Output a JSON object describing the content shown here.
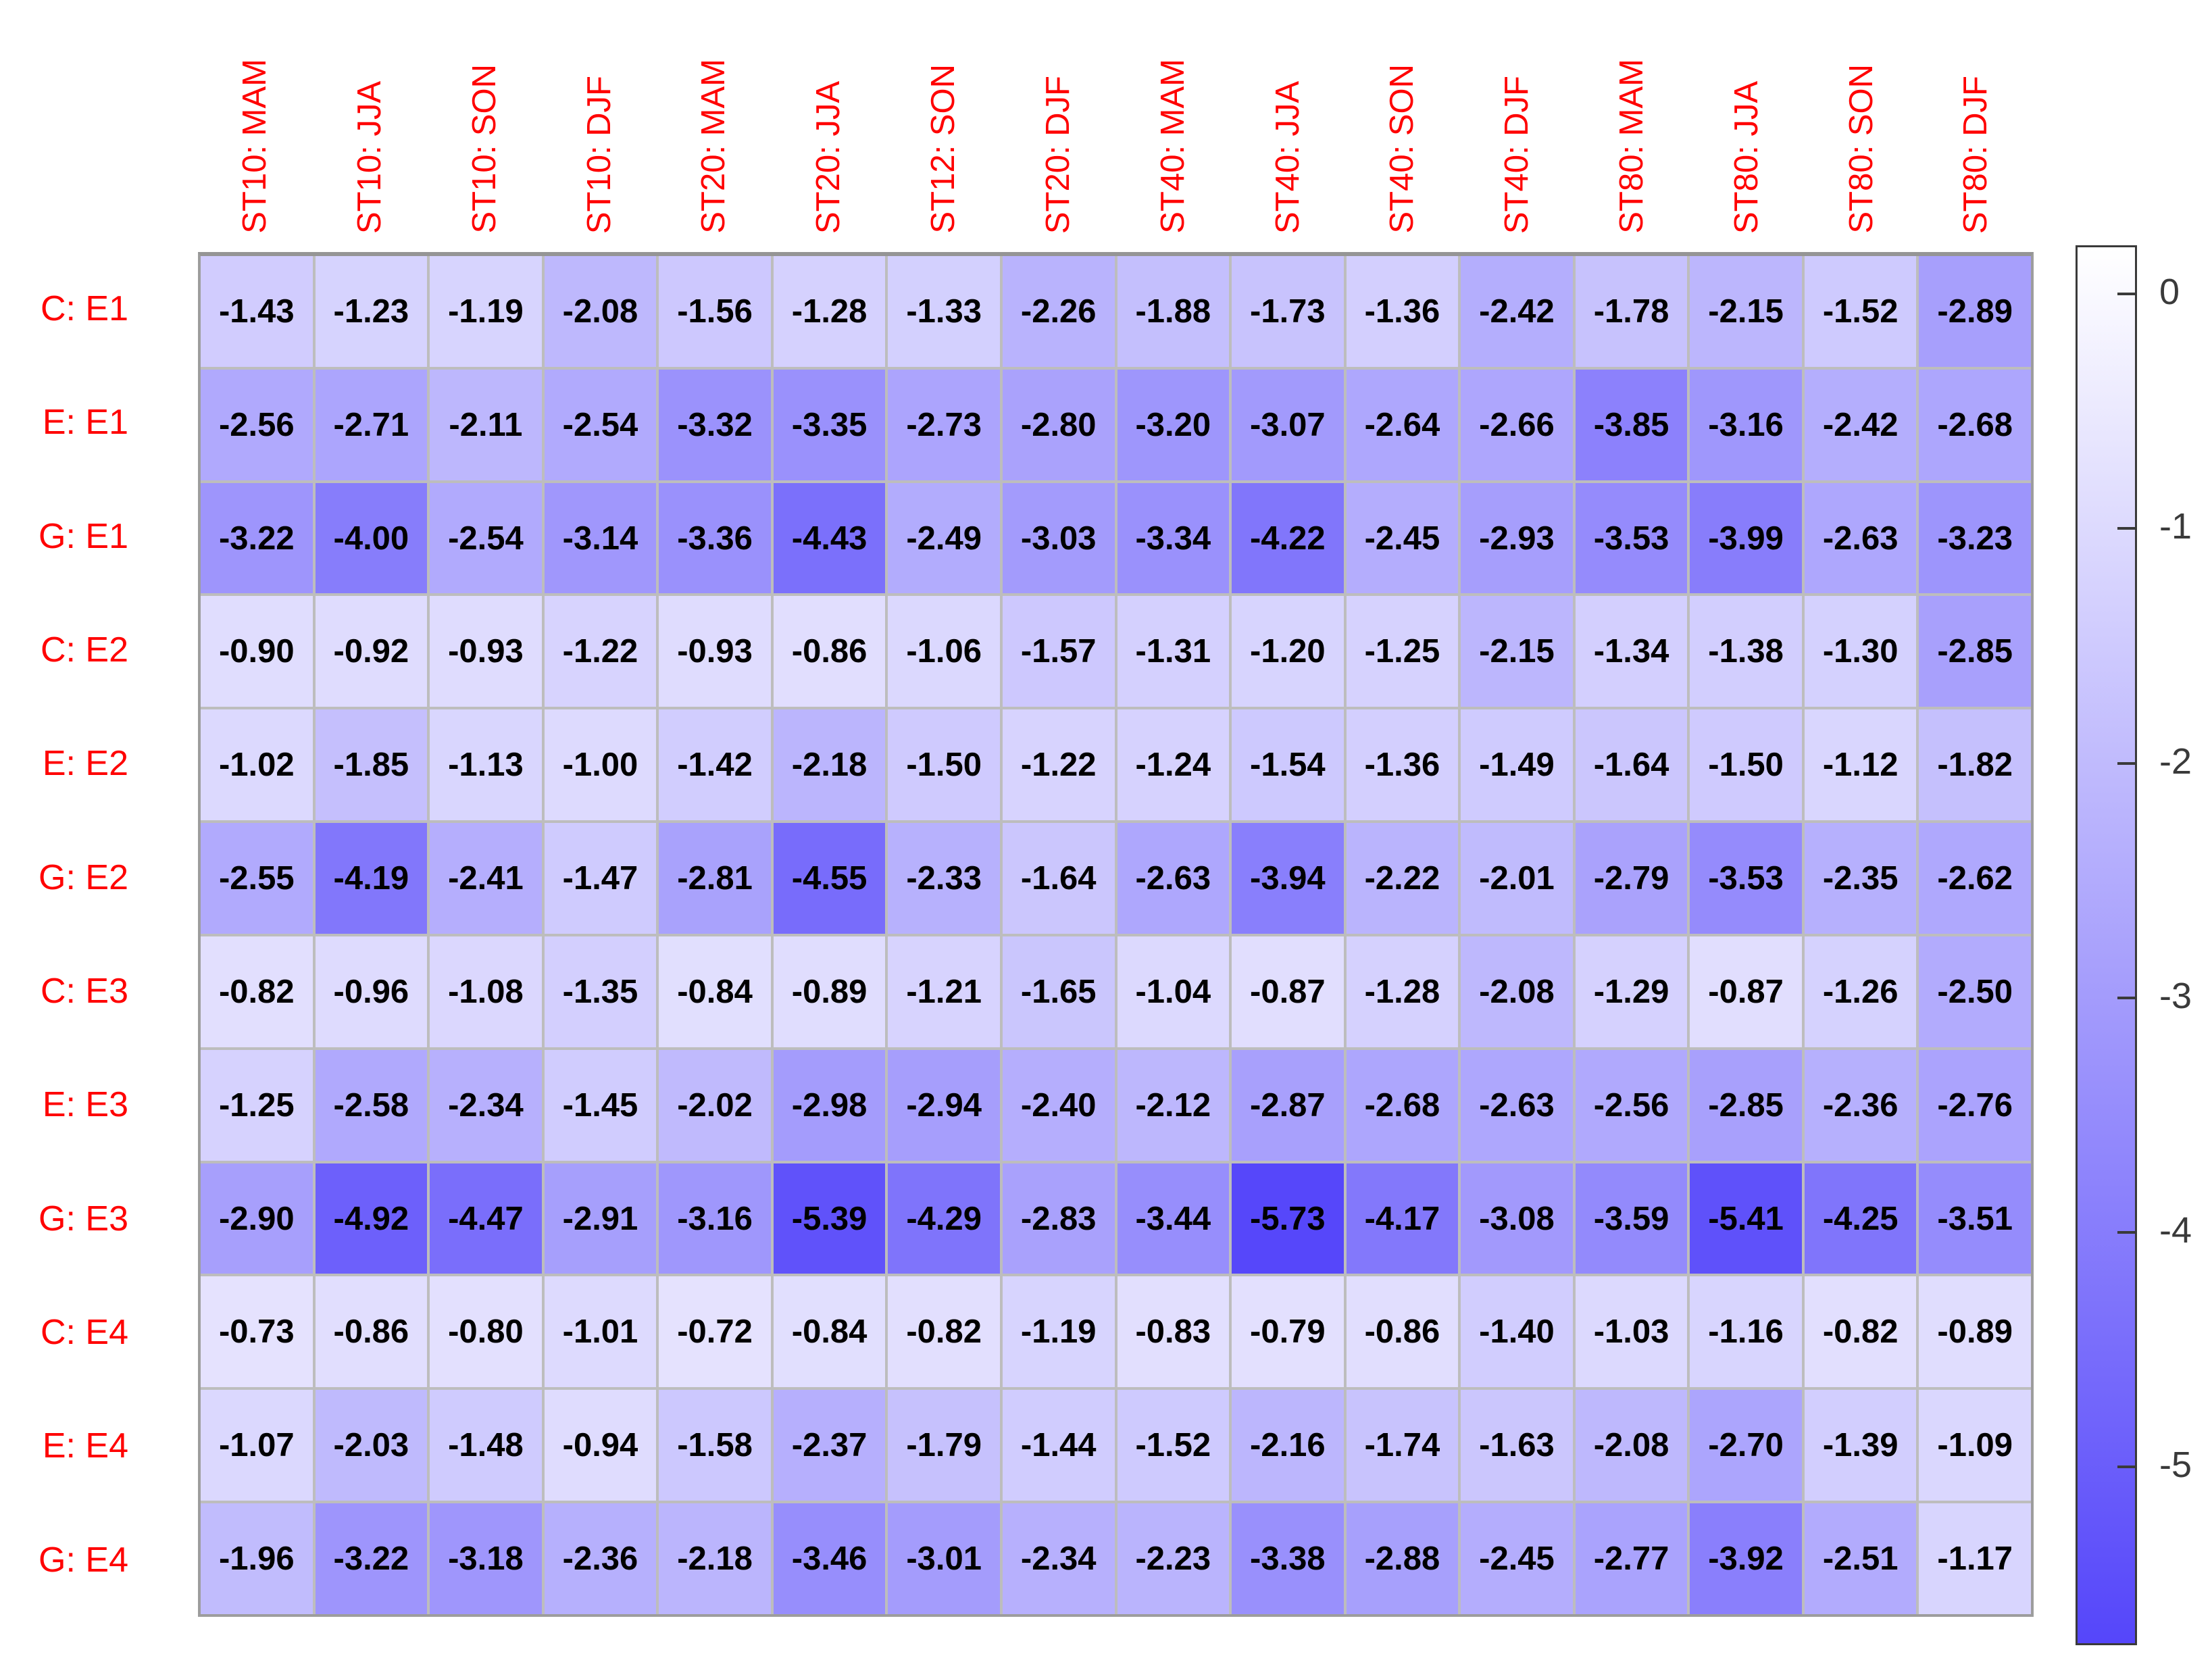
{
  "chart_data": {
    "type": "heatmap",
    "title": "",
    "columns": [
      "ST10: MAM",
      "ST10: JJA",
      "ST10: SON",
      "ST10: DJF",
      "ST20: MAM",
      "ST20: JJA",
      "ST12: SON",
      "ST20: DJF",
      "ST40: MAM",
      "ST40: JJA",
      "ST40: SON",
      "ST40: DJF",
      "ST80: MAM",
      "ST80: JJA",
      "ST80: SON",
      "ST80: DJF"
    ],
    "rows": [
      "C: E1",
      "E: E1",
      "G: E1",
      "C: E2",
      "E: E2",
      "G: E2",
      "C: E3",
      "E: E3",
      "G: E3",
      "C: E4",
      "E: E4",
      "G: E4"
    ],
    "values": [
      [
        -1.43,
        -1.23,
        -1.19,
        -2.08,
        -1.56,
        -1.28,
        -1.33,
        -2.26,
        -1.88,
        -1.73,
        -1.36,
        -2.42,
        -1.78,
        -2.15,
        -1.52,
        -2.89
      ],
      [
        -2.56,
        -2.71,
        -2.11,
        -2.54,
        -3.32,
        -3.35,
        -2.73,
        -2.8,
        -3.2,
        -3.07,
        -2.64,
        -2.66,
        -3.85,
        -3.16,
        -2.42,
        -2.68
      ],
      [
        -3.22,
        -4.0,
        -2.54,
        -3.14,
        -3.36,
        -4.43,
        -2.49,
        -3.03,
        -3.34,
        -4.22,
        -2.45,
        -2.93,
        -3.53,
        -3.99,
        -2.63,
        -3.23
      ],
      [
        -0.9,
        -0.92,
        -0.93,
        -1.22,
        -0.93,
        -0.86,
        -1.06,
        -1.57,
        -1.31,
        -1.2,
        -1.25,
        -2.15,
        -1.34,
        -1.38,
        -1.3,
        -2.85
      ],
      [
        -1.02,
        -1.85,
        -1.13,
        -1.0,
        -1.42,
        -2.18,
        -1.5,
        -1.22,
        -1.24,
        -1.54,
        -1.36,
        -1.49,
        -1.64,
        -1.5,
        -1.12,
        -1.82
      ],
      [
        -2.55,
        -4.19,
        -2.41,
        -1.47,
        -2.81,
        -4.55,
        -2.33,
        -1.64,
        -2.63,
        -3.94,
        -2.22,
        -2.01,
        -2.79,
        -3.53,
        -2.35,
        -2.62
      ],
      [
        -0.82,
        -0.96,
        -1.08,
        -1.35,
        -0.84,
        -0.89,
        -1.21,
        -1.65,
        -1.04,
        -0.87,
        -1.28,
        -2.08,
        -1.29,
        -0.87,
        -1.26,
        -2.5
      ],
      [
        -1.25,
        -2.58,
        -2.34,
        -1.45,
        -2.02,
        -2.98,
        -2.94,
        -2.4,
        -2.12,
        -2.87,
        -2.68,
        -2.63,
        -2.56,
        -2.85,
        -2.36,
        -2.76
      ],
      [
        -2.9,
        -4.92,
        -4.47,
        -2.91,
        -3.16,
        -5.39,
        -4.29,
        -2.83,
        -3.44,
        -5.73,
        -4.17,
        -3.08,
        -3.59,
        -5.41,
        -4.25,
        -3.51
      ],
      [
        -0.73,
        -0.86,
        -0.8,
        -1.01,
        -0.72,
        -0.84,
        -0.82,
        -1.19,
        -0.83,
        -0.79,
        -0.86,
        -1.4,
        -1.03,
        -1.16,
        -0.82,
        -0.89
      ],
      [
        -1.07,
        -2.03,
        -1.48,
        -0.94,
        -1.58,
        -2.37,
        -1.79,
        -1.44,
        -1.52,
        -2.16,
        -1.74,
        -1.63,
        -2.08,
        -2.7,
        -1.39,
        -1.09
      ],
      [
        -1.96,
        -3.22,
        -3.18,
        -2.36,
        -2.18,
        -3.46,
        -3.01,
        -2.34,
        -2.23,
        -3.38,
        -2.88,
        -2.45,
        -2.77,
        -3.92,
        -2.51,
        -1.17
      ]
    ],
    "value_format_decimals": 2,
    "colorbar": {
      "ticks": [
        0,
        -1,
        -2,
        -3,
        -4,
        -5
      ],
      "tick_labels": [
        "0",
        "-1",
        "-2",
        "-3",
        "-4",
        "-5"
      ],
      "vmax": 0.2,
      "vmin": -5.77,
      "color_high": "#FFFFFF",
      "color_low": "#5546FA"
    },
    "layout": {
      "grid_on": true,
      "legend_position": "right-colorbar",
      "x_tick_rotation_degrees": 90
    },
    "label_color": "#FF0000",
    "value_text_color": "#000000",
    "tick_label_color": "#3A3A3A"
  }
}
